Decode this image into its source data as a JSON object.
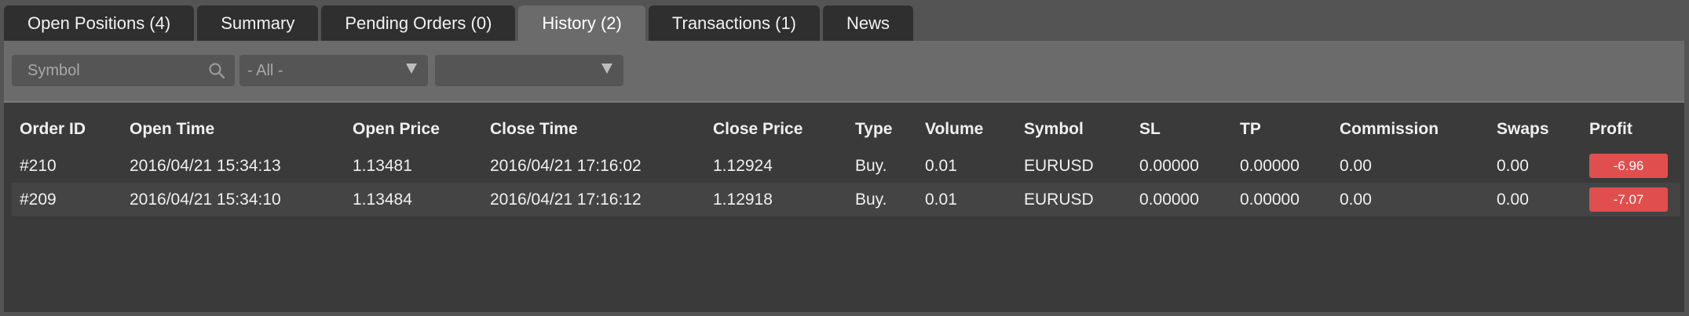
{
  "tabs": [
    {
      "label": "Open Positions (4)",
      "active": false
    },
    {
      "label": "Summary",
      "active": false
    },
    {
      "label": "Pending Orders (0)",
      "active": false
    },
    {
      "label": "History (2)",
      "active": true
    },
    {
      "label": "Transactions (1)",
      "active": false
    },
    {
      "label": "News",
      "active": false
    }
  ],
  "filters": {
    "symbol_placeholder": "Symbol",
    "type_select": "- All -",
    "period_select": ""
  },
  "table": {
    "headers": [
      "Order ID",
      "Open Time",
      "Open Price",
      "Close Time",
      "Close Price",
      "Type",
      "Volume",
      "Symbol",
      "SL",
      "TP",
      "Commission",
      "Swaps",
      "Profit"
    ],
    "rows": [
      {
        "order_id": "#210",
        "open_time": "2016/04/21 15:34:13",
        "open_price": "1.13481",
        "close_time": "2016/04/21 17:16:02",
        "close_price": "1.12924",
        "type": "Buy.",
        "volume": "0.01",
        "symbol": "EURUSD",
        "sl": "0.00000",
        "tp": "0.00000",
        "commission": "0.00",
        "swaps": "0.00",
        "profit": "-6.96"
      },
      {
        "order_id": "#209",
        "open_time": "2016/04/21 15:34:10",
        "open_price": "1.13484",
        "close_time": "2016/04/21 17:16:12",
        "close_price": "1.12918",
        "type": "Buy.",
        "volume": "0.01",
        "symbol": "EURUSD",
        "sl": "0.00000",
        "tp": "0.00000",
        "commission": "0.00",
        "swaps": "0.00",
        "profit": "-7.07"
      }
    ]
  },
  "colors": {
    "loss": "#e04e4e",
    "active_tab": "#6b6b6b",
    "panel": "#3a3a3a"
  }
}
